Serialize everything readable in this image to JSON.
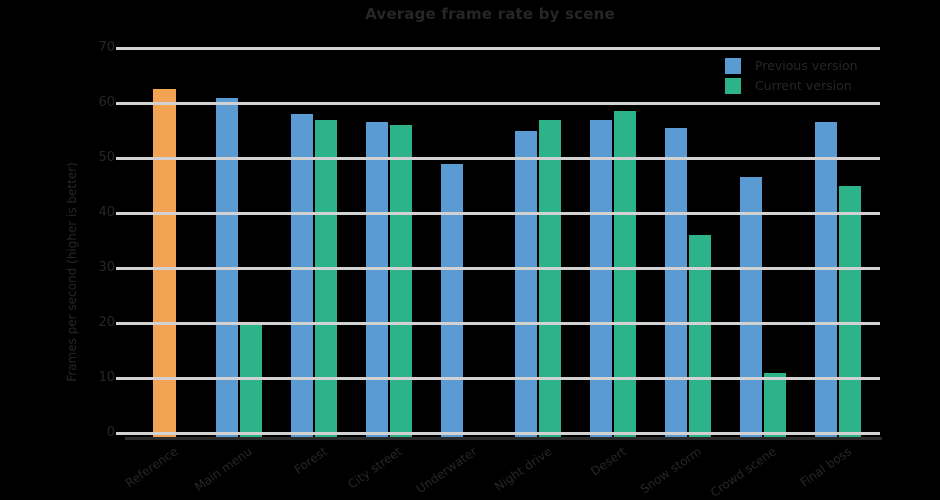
{
  "colors": {
    "background": "#000000",
    "text": "#262626",
    "grid": "#d2d2d2",
    "axis": "#2b2b2b",
    "orange": "#f3a354",
    "blue": "#5a9bd4",
    "green": "#2cb38a"
  },
  "legend": [
    {
      "label": "Previous version",
      "color": "#5a9bd4"
    },
    {
      "label": "Current version",
      "color": "#2cb38a"
    }
  ],
  "chart_data": {
    "type": "bar",
    "title": "Average frame rate by scene",
    "xlabel": "",
    "ylabel": "Frames per second (higher is better)",
    "ylim": [
      0,
      70
    ],
    "yticks": [
      "0",
      "10",
      "20",
      "30",
      "40",
      "50",
      "60",
      "70"
    ],
    "grid": true,
    "legend_position": "top-right",
    "categories": [
      "Reference",
      "Main menu",
      "Forest",
      "City street",
      "Underwater",
      "Night drive",
      "Desert",
      "Snow storm",
      "Crowd scene",
      "Final boss"
    ],
    "series": [
      {
        "name": "Reference",
        "role": "baseline",
        "color": "#f3a354",
        "values": [
          62.5,
          null,
          null,
          null,
          null,
          null,
          null,
          null,
          null,
          null
        ]
      },
      {
        "name": "Previous version",
        "role": "series",
        "color": "#5a9bd4",
        "values": [
          null,
          61,
          58,
          56.5,
          49,
          55,
          57,
          55.5,
          46.5,
          56.5
        ]
      },
      {
        "name": "Current version",
        "role": "series",
        "color": "#2cb38a",
        "values": [
          null,
          20,
          57,
          56,
          0,
          57,
          58.5,
          36,
          11,
          45
        ]
      }
    ]
  }
}
